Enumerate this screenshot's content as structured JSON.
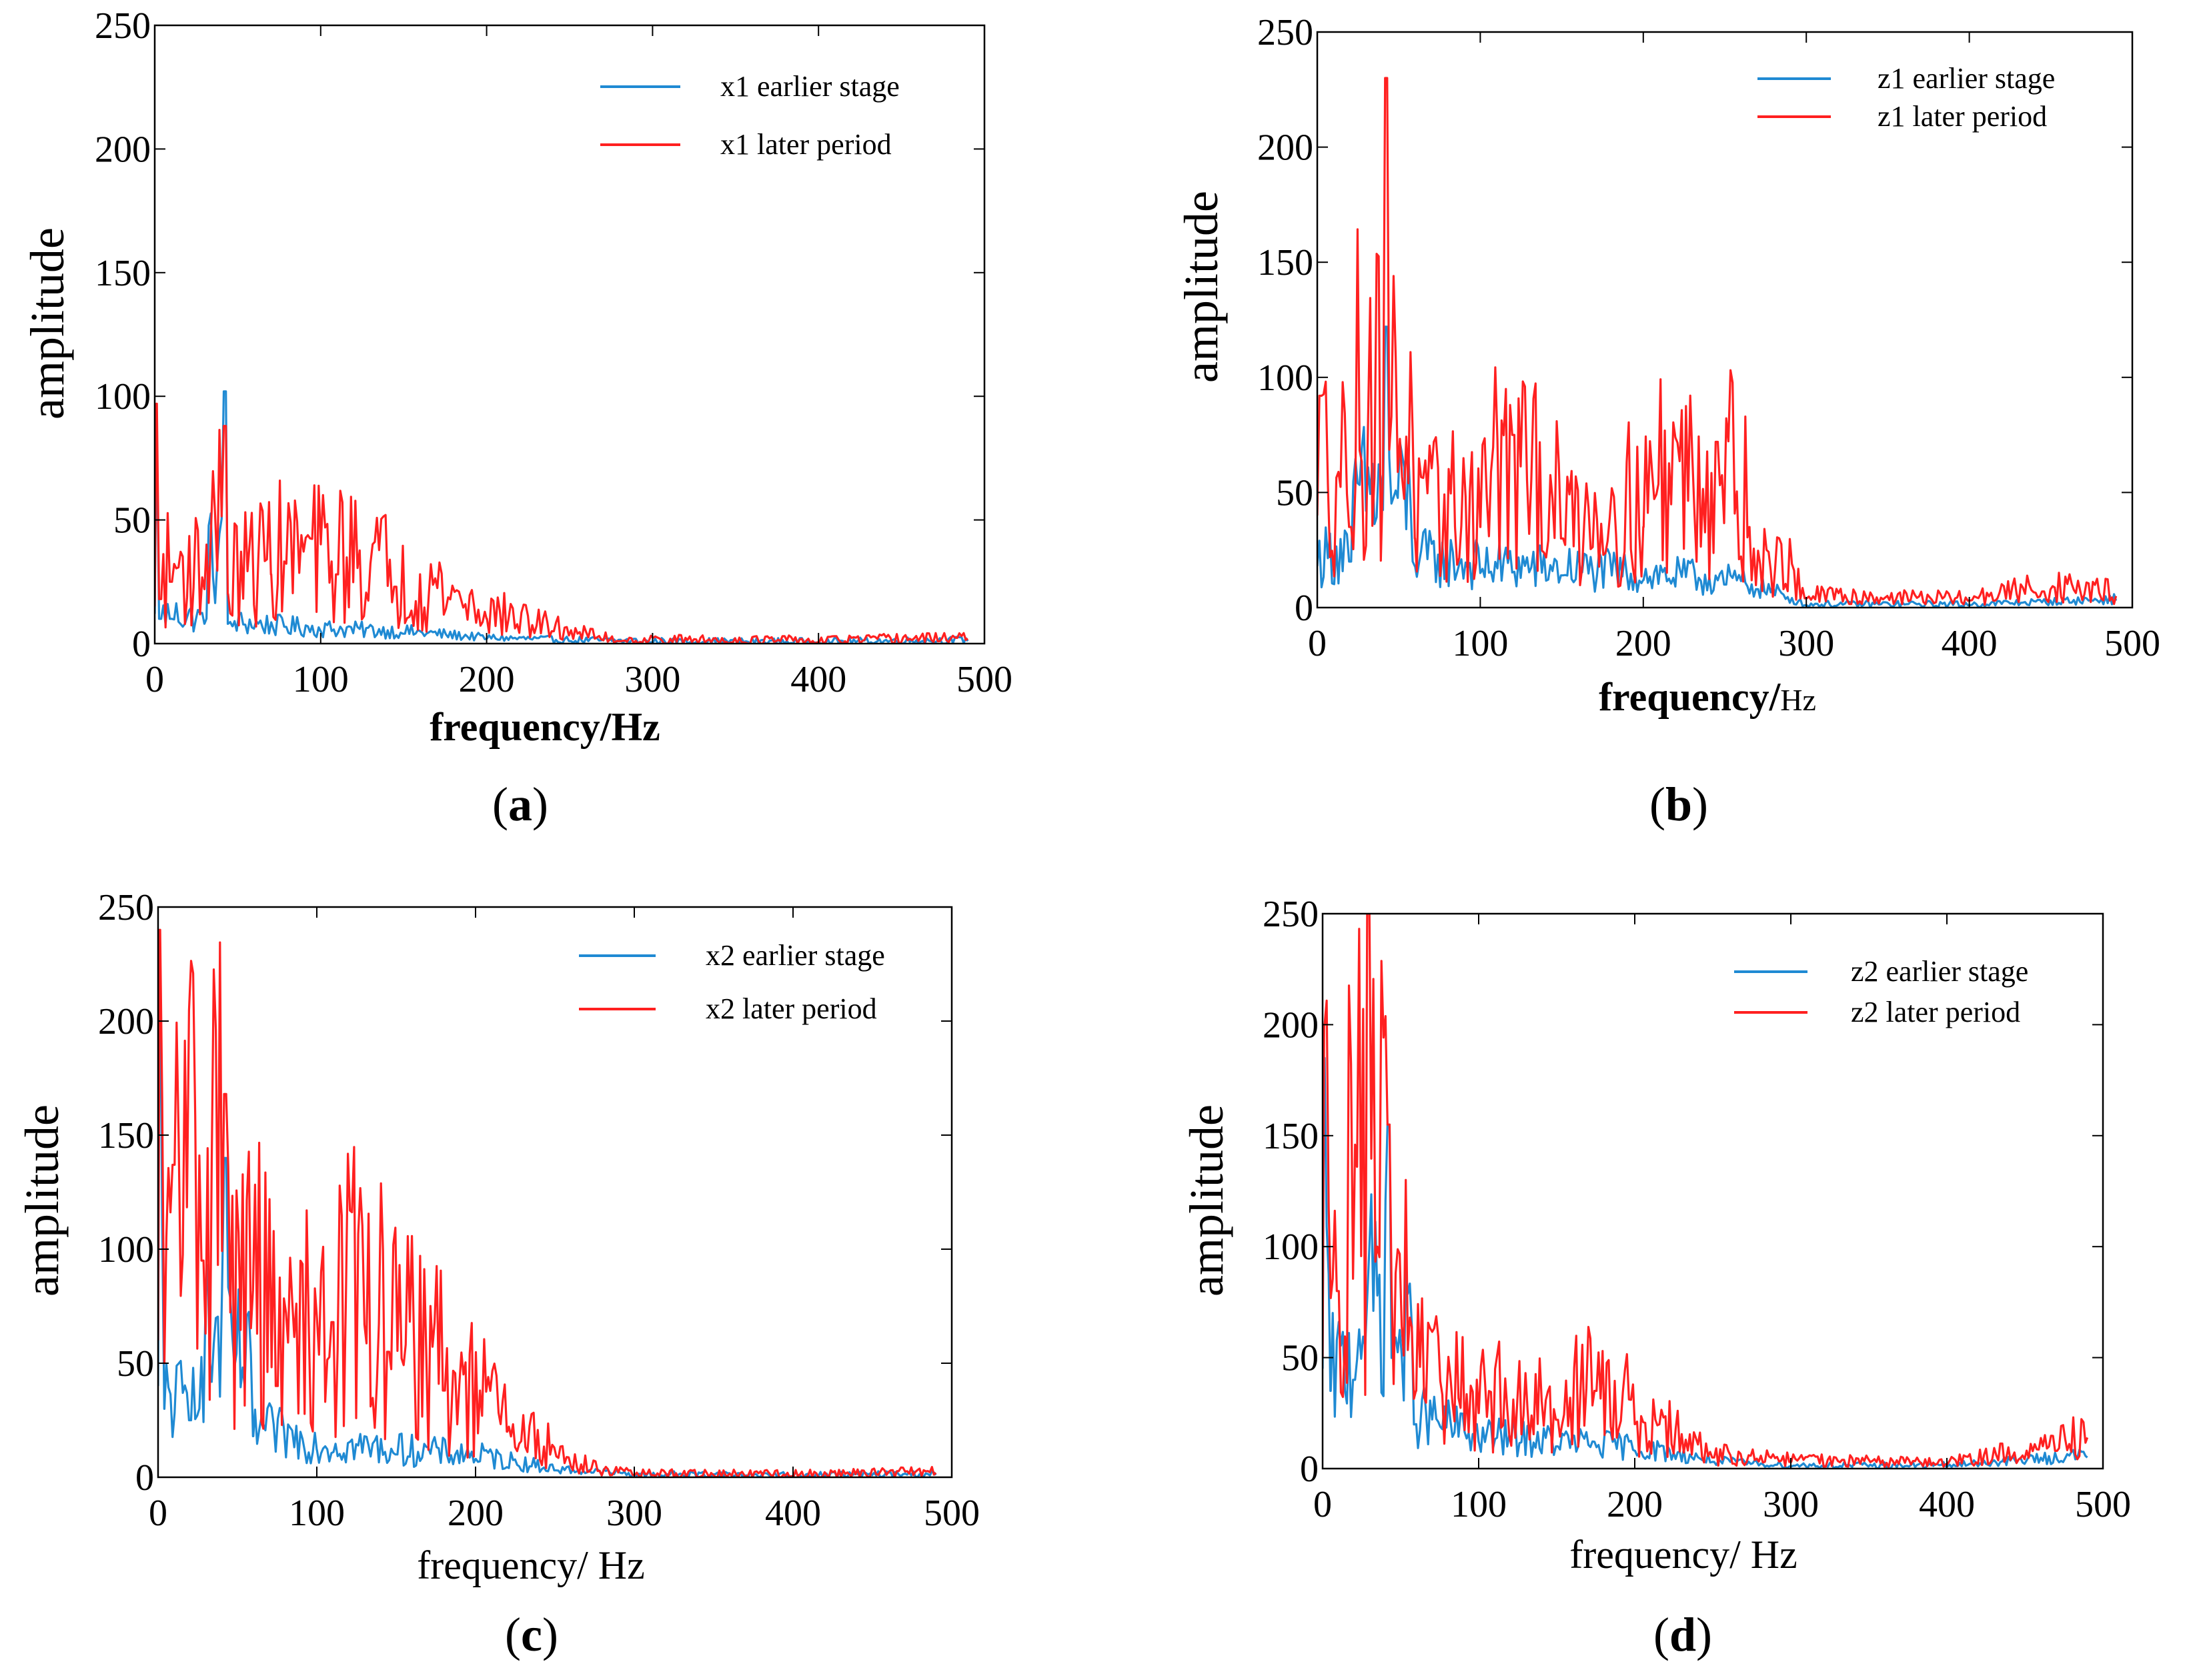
{
  "chart_data": [
    {
      "type": "line",
      "panel_label": "(a)",
      "xlabel": "frequency/Hz",
      "ylabel": "amplitude",
      "xlim": [
        0,
        500
      ],
      "ylim": [
        0,
        250
      ],
      "xticks": [
        0,
        100,
        200,
        300,
        400,
        500
      ],
      "yticks": [
        0,
        50,
        100,
        150,
        200,
        250
      ],
      "grid": false,
      "legend_position": "top-right",
      "series": [
        {
          "name": "x1 earlier stage",
          "color": "#1f8ad3",
          "description": "noisy spectrum, baseline ~8 decaying to ~0 by 250 Hz",
          "x": [
            0,
            1,
            3,
            10,
            30,
            42,
            44,
            47,
            100,
            150,
            200,
            250,
            300,
            400,
            490
          ],
          "y": [
            12,
            84,
            10,
            10,
            8,
            102,
            8,
            7,
            5,
            4,
            2,
            1,
            0.5,
            0.3,
            1
          ]
        },
        {
          "name": "x1 later period",
          "color": "#ff2020",
          "description": "noisy spectrum, baseline ~20 decaying to ~0 by 280 Hz",
          "x": [
            0,
            1,
            3,
            10,
            30,
            42,
            44,
            70,
            110,
            145,
            200,
            240,
            280,
            400,
            490
          ],
          "y": [
            15,
            97,
            18,
            25,
            22,
            88,
            20,
            28,
            28,
            23,
            10,
            5,
            1,
            0.5,
            2
          ]
        }
      ]
    },
    {
      "type": "line",
      "panel_label": "(b)",
      "xlabel": "frequency/",
      "xlabel_unit": "Hz",
      "ylabel": "amplitude",
      "xlim": [
        0,
        500
      ],
      "ylim": [
        0,
        250
      ],
      "xticks": [
        0,
        100,
        200,
        300,
        400,
        500
      ],
      "yticks": [
        0,
        50,
        100,
        150,
        200,
        250
      ],
      "grid": false,
      "legend_position": "top-right",
      "series": [
        {
          "name": "z1 earlier stage",
          "color": "#1f8ad3",
          "description": "noisy spectrum ~15, peak at ~42 Hz, falls after ~270 Hz",
          "x": [
            0,
            20,
            42,
            60,
            100,
            150,
            200,
            250,
            270,
            300,
            400,
            490
          ],
          "y": [
            18,
            20,
            122,
            18,
            15,
            14,
            12,
            10,
            8,
            1,
            1,
            3
          ]
        },
        {
          "name": "z1 later period",
          "color": "#ff2020",
          "description": "noisy spectrum ~30-40, peaks at ~42 Hz, ~120 Hz, ~245 Hz; falls after ~270 Hz",
          "x": [
            0,
            2,
            20,
            42,
            60,
            100,
            120,
            150,
            200,
            245,
            265,
            300,
            400,
            445,
            490
          ],
          "y": [
            40,
            92,
            35,
            230,
            30,
            35,
            75,
            30,
            35,
            72,
            35,
            4,
            3,
            7,
            5
          ]
        }
      ]
    },
    {
      "type": "line",
      "panel_label": "(c)",
      "xlabel": "frequency/  Hz",
      "ylabel": "amplitude",
      "xlim": [
        0,
        500
      ],
      "ylim": [
        0,
        250
      ],
      "xticks": [
        0,
        100,
        200,
        300,
        400,
        500
      ],
      "yticks": [
        0,
        50,
        100,
        150,
        200,
        250
      ],
      "grid": false,
      "legend_position": "top-right",
      "series": [
        {
          "name": "x2 earlier stage",
          "color": "#1f8ad3",
          "description": "noisy spectrum, large peak ~233 near 0 Hz and ~140 at ~42 Hz",
          "x": [
            0,
            1,
            4,
            20,
            42,
            60,
            100,
            150,
            200,
            250,
            300,
            400,
            490
          ],
          "y": [
            40,
            233,
            30,
            25,
            140,
            18,
            12,
            10,
            8,
            3,
            1,
            0.5,
            1
          ]
        },
        {
          "name": "x2 later period",
          "color": "#ff2020",
          "description": "noisy spectrum, peaks ~240 near 0 Hz, ~168 at 42 Hz, hump ~50 around 110-160 Hz",
          "x": [
            0,
            1,
            4,
            10,
            28,
            42,
            75,
            110,
            145,
            180,
            220,
            260,
            300,
            400,
            490
          ],
          "y": [
            60,
            240,
            50,
            137,
            95,
            168,
            40,
            68,
            55,
            38,
            20,
            5,
            1,
            0.5,
            2
          ]
        }
      ]
    },
    {
      "type": "line",
      "panel_label": "(d)",
      "xlabel": "frequency/  Hz",
      "ylabel": "amplitude",
      "xlim": [
        0,
        500
      ],
      "ylim": [
        0,
        250
      ],
      "xticks": [
        0,
        100,
        200,
        300,
        400,
        500
      ],
      "yticks": [
        0,
        50,
        100,
        150,
        200,
        250
      ],
      "grid": false,
      "legend_position": "top-right",
      "series": [
        {
          "name": "z2 earlier stage",
          "color": "#1f8ad3",
          "description": "noisy spectrum, peaks ~185 near 0 Hz and ~155 at ~42 Hz, then ~10",
          "x": [
            0,
            1,
            5,
            20,
            42,
            60,
            100,
            150,
            200,
            250,
            300,
            400,
            490
          ],
          "y": [
            45,
            185,
            35,
            40,
            155,
            20,
            12,
            10,
            8,
            3,
            1,
            1,
            5
          ]
        },
        {
          "name": "z2 later period",
          "color": "#ff2020",
          "description": "noisy spectrum, peaks ~200 near 0 Hz, ~136 at ~22 Hz, ~155 at ~42 Hz, hump ~25 to 200 Hz",
          "x": [
            0,
            1,
            10,
            22,
            35,
            42,
            60,
            100,
            150,
            175,
            200,
            250,
            300,
            400,
            470,
            490
          ],
          "y": [
            50,
            200,
            80,
            136,
            100,
            155,
            35,
            25,
            22,
            35,
            20,
            5,
            3,
            2,
            8,
            14
          ]
        }
      ]
    }
  ]
}
